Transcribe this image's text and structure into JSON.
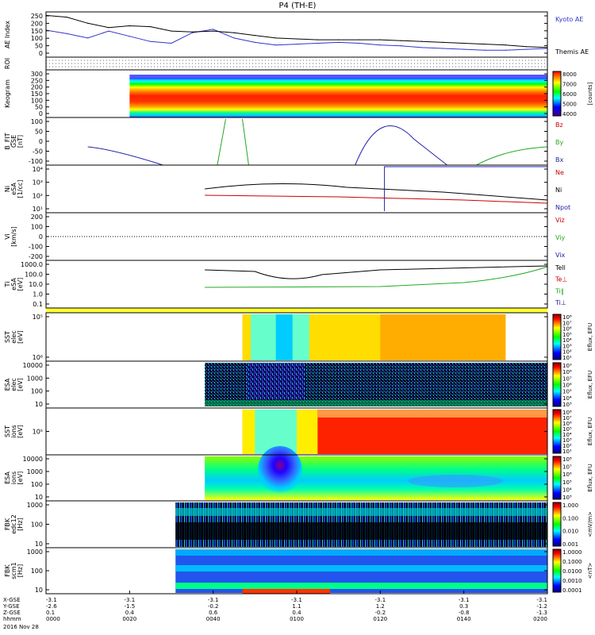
{
  "title": "P4 (TH-E)",
  "date": "2016 Nov 28",
  "panels": [
    {
      "id": "ae",
      "ylabel": [
        "AE Index"
      ],
      "ticks": [
        "250",
        "200",
        "150",
        "100",
        "50",
        "0"
      ],
      "legend": [
        {
          "text": "Kyoto AE",
          "color": "#3333cc"
        },
        {
          "text": "Themis AE",
          "color": "#000000"
        }
      ]
    },
    {
      "id": "roi",
      "ylabel": [
        "ROI"
      ],
      "ticks": [],
      "legend": []
    },
    {
      "id": "keogram",
      "ylabel": [
        "Keogram"
      ],
      "ticks": [
        "300",
        "250",
        "200",
        "150",
        "100",
        "50",
        "0"
      ],
      "legend": [],
      "colorbar": {
        "type": "rainbow",
        "ticks": [
          "8000",
          "7000",
          "6000",
          "5000",
          "4000"
        ],
        "label": "[counts]"
      }
    },
    {
      "id": "bfit",
      "ylabel": [
        "B_FIT",
        "GSE",
        "[nT]"
      ],
      "ticks": [
        "100",
        "50",
        "0",
        "-50",
        "-100"
      ],
      "legend": [
        {
          "text": "Bz",
          "color": "#cc0000"
        },
        {
          "text": "By",
          "color": "#22aa22"
        },
        {
          "text": "Bx",
          "color": "#2222aa"
        }
      ]
    },
    {
      "id": "ni",
      "ylabel": [
        "Ni",
        "eSA",
        "[1/cc]"
      ],
      "ticks": [
        "10⁴",
        "10³",
        "10²",
        "10¹"
      ],
      "legend": [
        {
          "text": "Ne",
          "color": "#cc0000"
        },
        {
          "text": "Ni",
          "color": "#000000"
        },
        {
          "text": "Npot",
          "color": "#2222aa"
        }
      ]
    },
    {
      "id": "vi",
      "ylabel": [
        "Vi",
        "[km/s]"
      ],
      "ticks": [
        "200",
        "100",
        "0",
        "-100",
        "-200"
      ],
      "legend": [
        {
          "text": "Viz",
          "color": "#cc0000"
        },
        {
          "text": "Viy",
          "color": "#22aa22"
        },
        {
          "text": "Vix",
          "color": "#2222aa"
        }
      ]
    },
    {
      "id": "ti",
      "ylabel": [
        "Ti",
        "eSA",
        "[eV]"
      ],
      "ticks": [
        "1000.0",
        "100.0",
        "10.0",
        "1.0",
        "0.1"
      ],
      "legend": [
        {
          "text": "Tell",
          "color": "#000000"
        },
        {
          "text": "Te⊥",
          "color": "#cc0000"
        },
        {
          "text": "Ti‖",
          "color": "#22aa22"
        },
        {
          "text": "Ti⊥",
          "color": "#2222aa"
        }
      ]
    },
    {
      "id": "sst_e",
      "ylabel": [
        "SST",
        "elec",
        "[eV]"
      ],
      "ticks": [
        "10⁵",
        "10⁶"
      ],
      "legend": [],
      "colorbar": {
        "type": "jet",
        "ticks": [
          "10⁸",
          "10⁷",
          "10⁶",
          "10⁵",
          "10⁴",
          "10³",
          "10²",
          "10¹"
        ],
        "label": "Eflux, EFU"
      }
    },
    {
      "id": "esa_e",
      "ylabel": [
        "ESA",
        "elec",
        "[eV]"
      ],
      "ticks": [
        "10000",
        "1000",
        "100",
        "10"
      ],
      "legend": [],
      "colorbar": {
        "type": "jet",
        "ticks": [
          "10⁹",
          "10⁸",
          "10⁷",
          "10⁶",
          "10⁵",
          "10⁴",
          "10³"
        ],
        "label": "Eflux, EFU"
      }
    },
    {
      "id": "sst_i",
      "ylabel": [
        "SST",
        "ions",
        "[eV]"
      ],
      "ticks": [
        "10⁵"
      ],
      "legend": [],
      "colorbar": {
        "type": "jet",
        "ticks": [
          "10⁸",
          "10⁷",
          "10⁶",
          "10⁵",
          "10⁴",
          "10³",
          "10²",
          "10¹"
        ],
        "label": "Eflux, EFU"
      }
    },
    {
      "id": "esa_i",
      "ylabel": [
        "ESA",
        "ions",
        "[eV]"
      ],
      "ticks": [
        "10000",
        "1000",
        "100",
        "10"
      ],
      "legend": [],
      "colorbar": {
        "type": "jet",
        "ticks": [
          "10⁸",
          "10⁷",
          "10⁶",
          "10⁵",
          "10⁴",
          "10³"
        ],
        "label": "Eflux, EFU"
      }
    },
    {
      "id": "fbk_e",
      "ylabel": [
        "FBK",
        "edc12",
        "[Hz]"
      ],
      "ticks": [
        "1000",
        "100",
        "10"
      ],
      "legend": [],
      "colorbar": {
        "type": "jet",
        "ticks": [
          "1.000",
          "0.100",
          "0.010",
          "0.001"
        ],
        "label": "<mV/m>"
      }
    },
    {
      "id": "fbk_b",
      "ylabel": [
        "FBK",
        "scm1",
        "[Hz]"
      ],
      "ticks": [
        "1000",
        "100",
        "10"
      ],
      "legend": [],
      "colorbar": {
        "type": "jet",
        "ticks": [
          "1.0000",
          "0.1000",
          "0.0100",
          "0.0010",
          "0.0001"
        ],
        "label": "<nT>"
      }
    }
  ],
  "time_axis": {
    "row_labels": [
      "X-GSE",
      "Y-GSE",
      "Z-GSE",
      "hhmm"
    ],
    "ticks": [
      {
        "t": 0,
        "x": "-3.1",
        "y": "-2.6",
        "z": "0.1",
        "hhmm": "0000"
      },
      {
        "t": 20,
        "x": "-3.1",
        "y": "-1.5",
        "z": "0.4",
        "hhmm": "0020"
      },
      {
        "t": 40,
        "x": "-3.1",
        "y": "-0.2",
        "z": "0.6",
        "hhmm": "0040"
      },
      {
        "t": 60,
        "x": "-3.1",
        "y": "1.1",
        "z": "0.4",
        "hhmm": "0100"
      },
      {
        "t": 80,
        "x": "-3.1",
        "y": "1.2",
        "z": "-0.2",
        "hhmm": "0120"
      },
      {
        "t": 100,
        "x": "-3.1",
        "y": "0.3",
        "z": "-0.8",
        "hhmm": "0140"
      },
      {
        "t": 120,
        "x": "-3.1",
        "y": "-1.2",
        "z": "-1.3",
        "hhmm": "0200"
      }
    ]
  },
  "chart_data": {
    "type": "line",
    "title": "P4 (TH-E)",
    "xlabel": "hhmm",
    "x_range_minutes": [
      0,
      120
    ],
    "series": [
      {
        "name": "Kyoto AE",
        "x": [
          0,
          5,
          10,
          15,
          20,
          25,
          30,
          35,
          40,
          45,
          50,
          55,
          60,
          65,
          70,
          75,
          80,
          85,
          90,
          95,
          100,
          105,
          110,
          115,
          120
        ],
        "values": [
          155,
          135,
          110,
          150,
          120,
          90,
          80,
          140,
          160,
          110,
          85,
          70,
          75,
          80,
          85,
          80,
          70,
          65,
          55,
          50,
          45,
          40,
          40,
          45,
          50
        ]
      },
      {
        "name": "Themis AE",
        "x": [
          0,
          5,
          10,
          15,
          20,
          25,
          30,
          35,
          40,
          45,
          50,
          55,
          60,
          65,
          70,
          75,
          80,
          85,
          90,
          95,
          100,
          105,
          110,
          115,
          120
        ],
        "values": [
          240,
          230,
          195,
          170,
          180,
          175,
          150,
          145,
          150,
          140,
          125,
          110,
          105,
          100,
          100,
          100,
          100,
          95,
          90,
          85,
          80,
          75,
          70,
          60,
          55
        ]
      }
    ]
  }
}
